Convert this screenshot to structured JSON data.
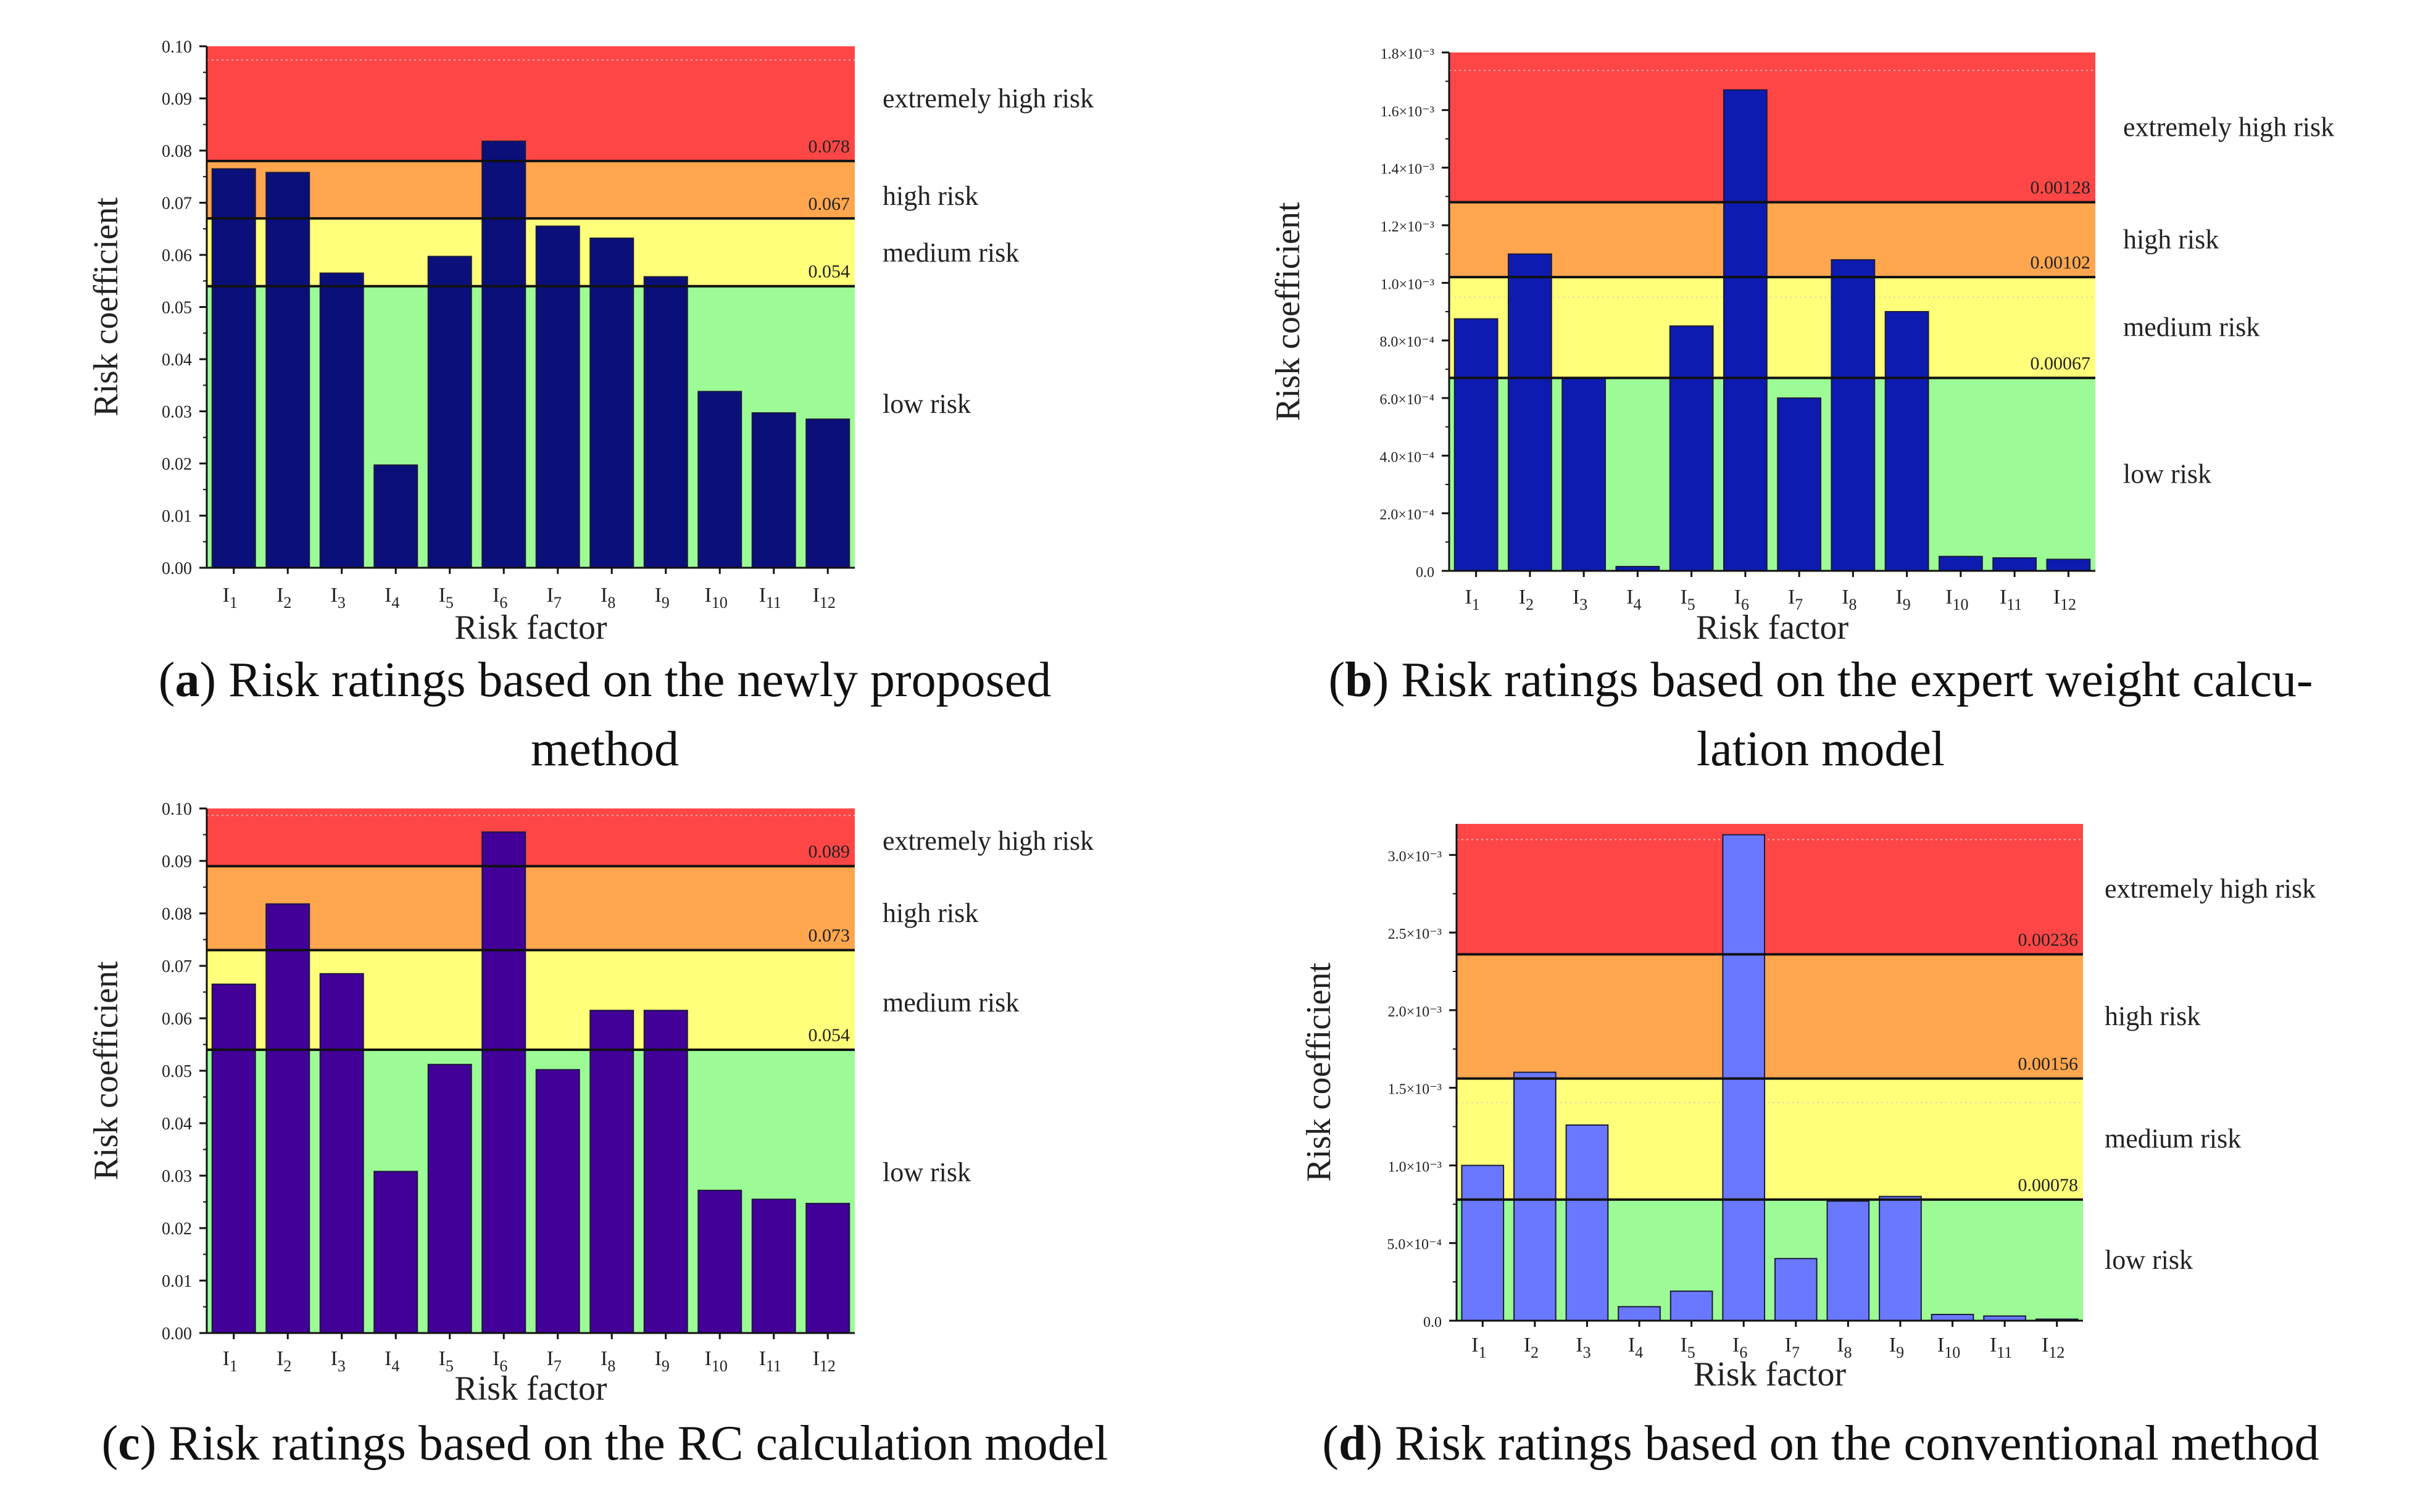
{
  "figure": {
    "ylabel": "Risk coefficient",
    "xlabel": "Risk factor",
    "zones": {
      "extreme": "extremely high risk",
      "high": "high risk",
      "medium": "medium risk",
      "low": "low risk"
    },
    "zone_colors": {
      "extreme": "#ff4646",
      "high": "#ffa64f",
      "medium": "#ffff7a",
      "low": "#9dfb96"
    },
    "factor_prefix": "I",
    "factor_subscripts": [
      "1",
      "2",
      "3",
      "4",
      "5",
      "6",
      "7",
      "8",
      "9",
      "10",
      "11",
      "12"
    ]
  },
  "chart_data": [
    {
      "panel": "a",
      "type": "bar",
      "caption_label": "a",
      "caption_lines": [
        ") Risk ratings based on the newly proposed",
        "method"
      ],
      "categories": [
        "I1",
        "I2",
        "I3",
        "I4",
        "I5",
        "I6",
        "I7",
        "I8",
        "I9",
        "I10",
        "I11",
        "I12"
      ],
      "values": [
        0.0765,
        0.0758,
        0.0565,
        0.0197,
        0.0597,
        0.0818,
        0.0655,
        0.0632,
        0.0558,
        0.0338,
        0.0297,
        0.0285
      ],
      "ylim": [
        0,
        0.1
      ],
      "yticks": [
        "0.00",
        "0.01",
        "0.02",
        "0.03",
        "0.04",
        "0.05",
        "0.06",
        "0.07",
        "0.08",
        "0.09",
        "0.10"
      ],
      "thresholds": [
        0.054,
        0.067,
        0.078
      ],
      "threshold_labels": [
        "0.054",
        "0.067",
        "0.078"
      ],
      "bar_color": "#0a0f7a",
      "xlabel": "Risk factor",
      "ylabel": "Risk coefficient"
    },
    {
      "panel": "b",
      "type": "bar",
      "caption_label": "b",
      "caption_lines": [
        ") Risk ratings based on the expert weight calcu-",
        "lation model"
      ],
      "categories": [
        "I1",
        "I2",
        "I3",
        "I4",
        "I5",
        "I6",
        "I7",
        "I8",
        "I9",
        "I10",
        "I11",
        "I12"
      ],
      "values": [
        0.000875,
        0.0011,
        0.00067,
        1.5e-05,
        0.00085,
        0.00167,
        0.0006,
        0.00108,
        0.0009,
        5e-05,
        4.5e-05,
        4e-05
      ],
      "ylim": [
        0,
        0.0018
      ],
      "yticks": [
        "0.0",
        "2.0×10⁻⁴",
        "4.0×10⁻⁴",
        "6.0×10⁻⁴",
        "8.0×10⁻⁴",
        "1.0×10⁻³",
        "1.2×10⁻³",
        "1.4×10⁻³",
        "1.6×10⁻³",
        "1.8×10⁻³"
      ],
      "thresholds": [
        0.00067,
        0.00102,
        0.00128
      ],
      "threshold_labels": [
        "0.00067",
        "0.00102",
        "0.00128"
      ],
      "bar_color": "#0d1bb0",
      "xlabel": "Risk factor",
      "ylabel": "Risk coefficient"
    },
    {
      "panel": "c",
      "type": "bar",
      "caption_label": "c",
      "caption_lines": [
        ") Risk ratings based on the RC calculation model"
      ],
      "categories": [
        "I1",
        "I2",
        "I3",
        "I4",
        "I5",
        "I6",
        "I7",
        "I8",
        "I9",
        "I10",
        "I11",
        "I12"
      ],
      "values": [
        0.0665,
        0.0818,
        0.0685,
        0.0308,
        0.0512,
        0.0955,
        0.0502,
        0.0615,
        0.0615,
        0.0272,
        0.0255,
        0.0247
      ],
      "ylim": [
        0,
        0.1
      ],
      "yticks": [
        "0.00",
        "0.01",
        "0.02",
        "0.03",
        "0.04",
        "0.05",
        "0.06",
        "0.07",
        "0.08",
        "0.09",
        "0.10"
      ],
      "thresholds": [
        0.054,
        0.073,
        0.089
      ],
      "threshold_labels": [
        "0.054",
        "0.073",
        "0.089"
      ],
      "bar_color": "#420099",
      "xlabel": "Risk factor",
      "ylabel": "Risk coefficient"
    },
    {
      "panel": "d",
      "type": "bar",
      "caption_label": "d",
      "caption_lines": [
        ") Risk ratings based on the conventional method"
      ],
      "categories": [
        "I1",
        "I2",
        "I3",
        "I4",
        "I5",
        "I6",
        "I7",
        "I8",
        "I9",
        "I10",
        "I11",
        "I12"
      ],
      "values": [
        0.001,
        0.0016,
        0.00126,
        9e-05,
        0.00019,
        0.00313,
        0.0004,
        0.00077,
        0.0008,
        4e-05,
        3e-05,
        1e-05
      ],
      "ylim": [
        0,
        0.0032
      ],
      "yticks": [
        "0.0",
        "5.0×10⁻⁴",
        "1.0×10⁻³",
        "1.5×10⁻³",
        "2.0×10⁻³",
        "2.5×10⁻³",
        "3.0×10⁻³"
      ],
      "ytick_values": [
        0,
        0.0005,
        0.001,
        0.0015,
        0.002,
        0.0025,
        0.003
      ],
      "thresholds": [
        0.00078,
        0.00156,
        0.00236
      ],
      "threshold_labels": [
        "0.00078",
        "0.00156",
        "0.00236"
      ],
      "bar_color": "#6a78ff",
      "xlabel": "Risk factor",
      "ylabel": "Risk coefficient"
    }
  ]
}
